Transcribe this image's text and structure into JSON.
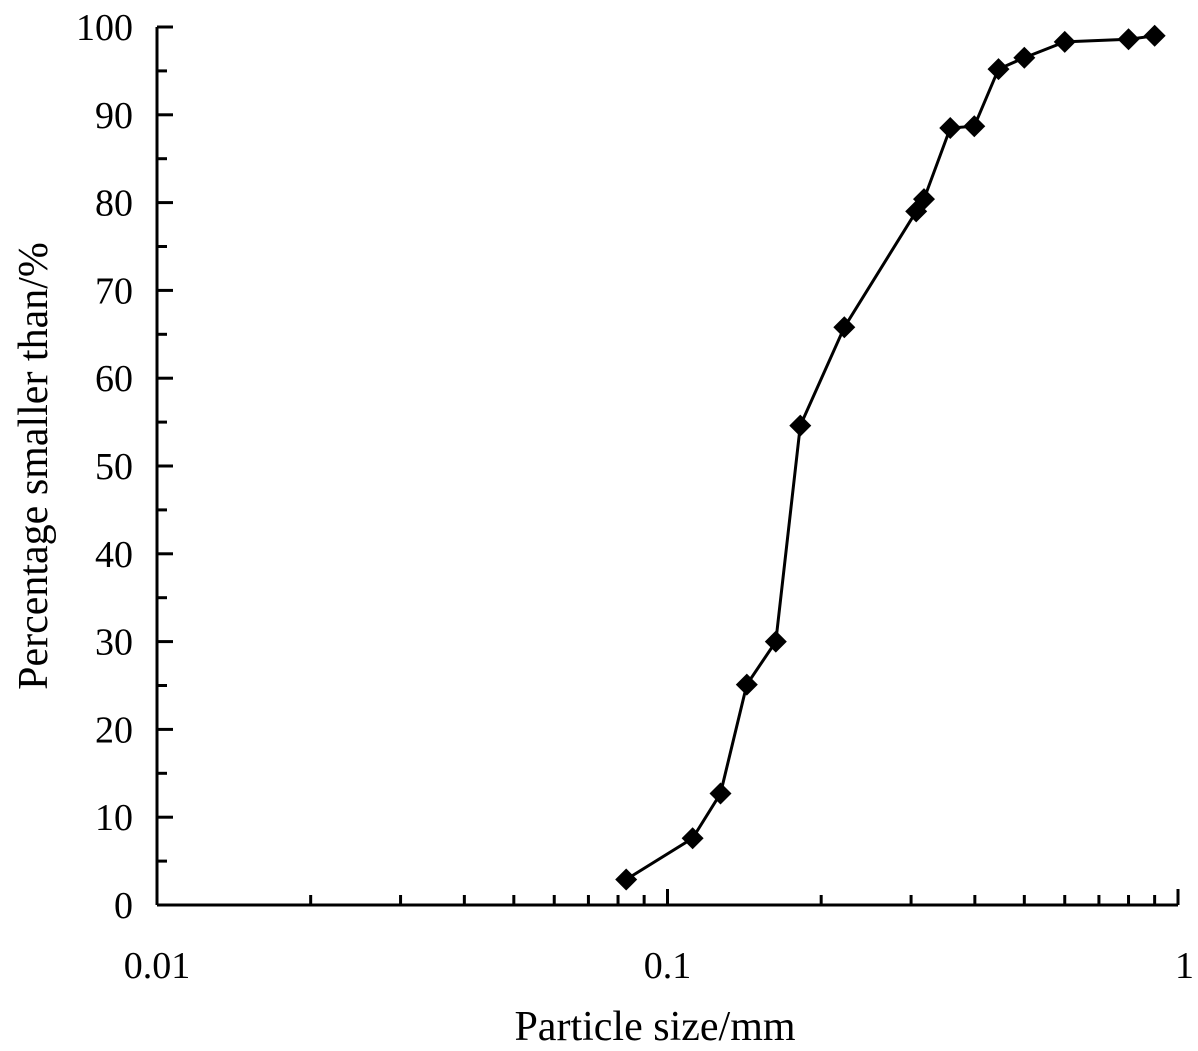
{
  "chart_data": {
    "type": "scatter",
    "title": "",
    "xlabel": "Particle size/mm",
    "ylabel": "Percentage smaller than/%",
    "x_scale": "log",
    "xlim": [
      0.01,
      1
    ],
    "ylim": [
      0,
      100
    ],
    "x_tick_labels": [
      "0.01",
      "0.1",
      "1"
    ],
    "y_tick_labels": [
      "0",
      "10",
      "20",
      "30",
      "40",
      "50",
      "60",
      "70",
      "80",
      "90",
      "100"
    ],
    "grid": false,
    "legend": "none",
    "marker": "diamond",
    "line_color": "#000000",
    "series": [
      {
        "x": [
          0.083,
          0.112,
          0.127,
          0.143,
          0.163,
          0.182,
          0.222,
          0.307,
          0.318,
          0.358,
          0.399,
          0.445,
          0.5,
          0.6,
          0.8,
          0.9
        ],
        "y": [
          2.9,
          7.6,
          12.7,
          25.1,
          30.0,
          54.6,
          65.8,
          79.0,
          80.4,
          88.5,
          88.7,
          95.2,
          96.5,
          98.3,
          98.6,
          99.0
        ]
      }
    ]
  }
}
